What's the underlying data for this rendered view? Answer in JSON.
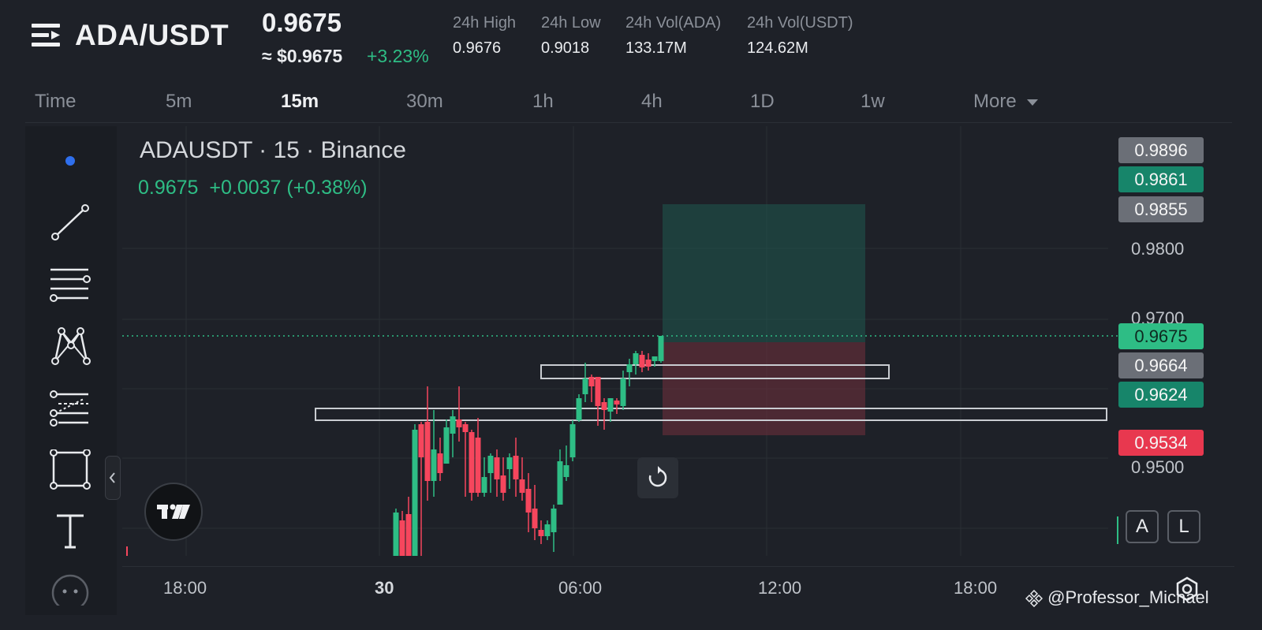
{
  "header": {
    "pair": "ADA/USDT",
    "last_price": "0.9675",
    "approx_fiat": "≈ $0.9675",
    "change_pct": "+3.23%",
    "stats": [
      {
        "label": "24h High",
        "value": "0.9676"
      },
      {
        "label": "24h Low",
        "value": "0.9018"
      },
      {
        "label": "24h Vol(ADA)",
        "value": "133.17M"
      },
      {
        "label": "24h Vol(USDT)",
        "value": "124.62M"
      }
    ]
  },
  "tabs": [
    "Time",
    "5m",
    "15m",
    "30m",
    "1h",
    "4h",
    "1D",
    "1w",
    "More"
  ],
  "active_tab": "15m",
  "chart_legend": {
    "title": "ADAUSDT · 15 · Binance",
    "price": "0.9675",
    "change": "+0.0037 (+0.38%)"
  },
  "price_labels": [
    {
      "value": "0.9896",
      "style": "gray"
    },
    {
      "value": "0.9861",
      "style": "teal"
    },
    {
      "value": "0.9855",
      "style": "gray"
    },
    {
      "value": "0.9675",
      "style": "green"
    },
    {
      "value": "0.9664",
      "style": "gray"
    },
    {
      "value": "0.9624",
      "style": "teal"
    },
    {
      "value": "0.9534",
      "style": "red"
    }
  ],
  "y_axis_ticks": [
    "0.9800",
    "0.9700",
    "0.9500"
  ],
  "x_axis_ticks": [
    "18:00",
    "30",
    "06:00",
    "12:00",
    "18:00"
  ],
  "scale_buttons": {
    "auto": "A",
    "log": "L"
  },
  "watermark": "@Professor_Michael",
  "icons": {
    "menu": "menu-icon",
    "tools": [
      "dot-icon",
      "trend-line-icon",
      "parallel-lines-icon",
      "pattern-icon",
      "fib-icon",
      "rectangle-icon",
      "text-icon",
      "more-icon"
    ],
    "collapse": "chevron-left-icon",
    "reset": "refresh-icon",
    "settings": "hexagon-settings-icon",
    "logo": "tradingview-logo-icon"
  },
  "colors": {
    "up": "#2ebd85",
    "down": "#f6465d",
    "gray_label": "#6b6f77",
    "teal_label": "#17856a",
    "background": "#1e2128"
  }
}
